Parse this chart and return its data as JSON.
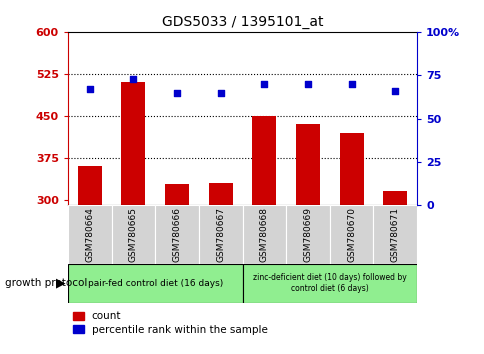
{
  "title": "GDS5033 / 1395101_at",
  "samples": [
    "GSM780664",
    "GSM780665",
    "GSM780666",
    "GSM780667",
    "GSM780668",
    "GSM780669",
    "GSM780670",
    "GSM780671"
  ],
  "counts": [
    360,
    510,
    328,
    330,
    450,
    435,
    420,
    315
  ],
  "percentiles": [
    67,
    73,
    65,
    65,
    70,
    70,
    70,
    66
  ],
  "ylim_left": [
    290,
    600
  ],
  "ylim_right": [
    0,
    100
  ],
  "yticks_left": [
    300,
    375,
    450,
    525,
    600
  ],
  "yticks_right": [
    0,
    25,
    50,
    75,
    100
  ],
  "bar_color": "#cc0000",
  "dot_color": "#0000cc",
  "bar_width": 0.55,
  "group1_label": "pair-fed control diet (16 days)",
  "group2_label": "zinc-deficient diet (10 days) followed by\ncontrol diet (6 days)",
  "group1_color": "#90ee90",
  "group2_color": "#90ee90",
  "sample_box_color": "#d3d3d3",
  "protocol_label": "growth protocol",
  "legend_count_label": "count",
  "legend_pct_label": "percentile rank within the sample",
  "left_axis_color": "#cc0000",
  "right_axis_color": "#0000cc",
  "grid_color": "black",
  "n_group1": 4,
  "n_group2": 4
}
